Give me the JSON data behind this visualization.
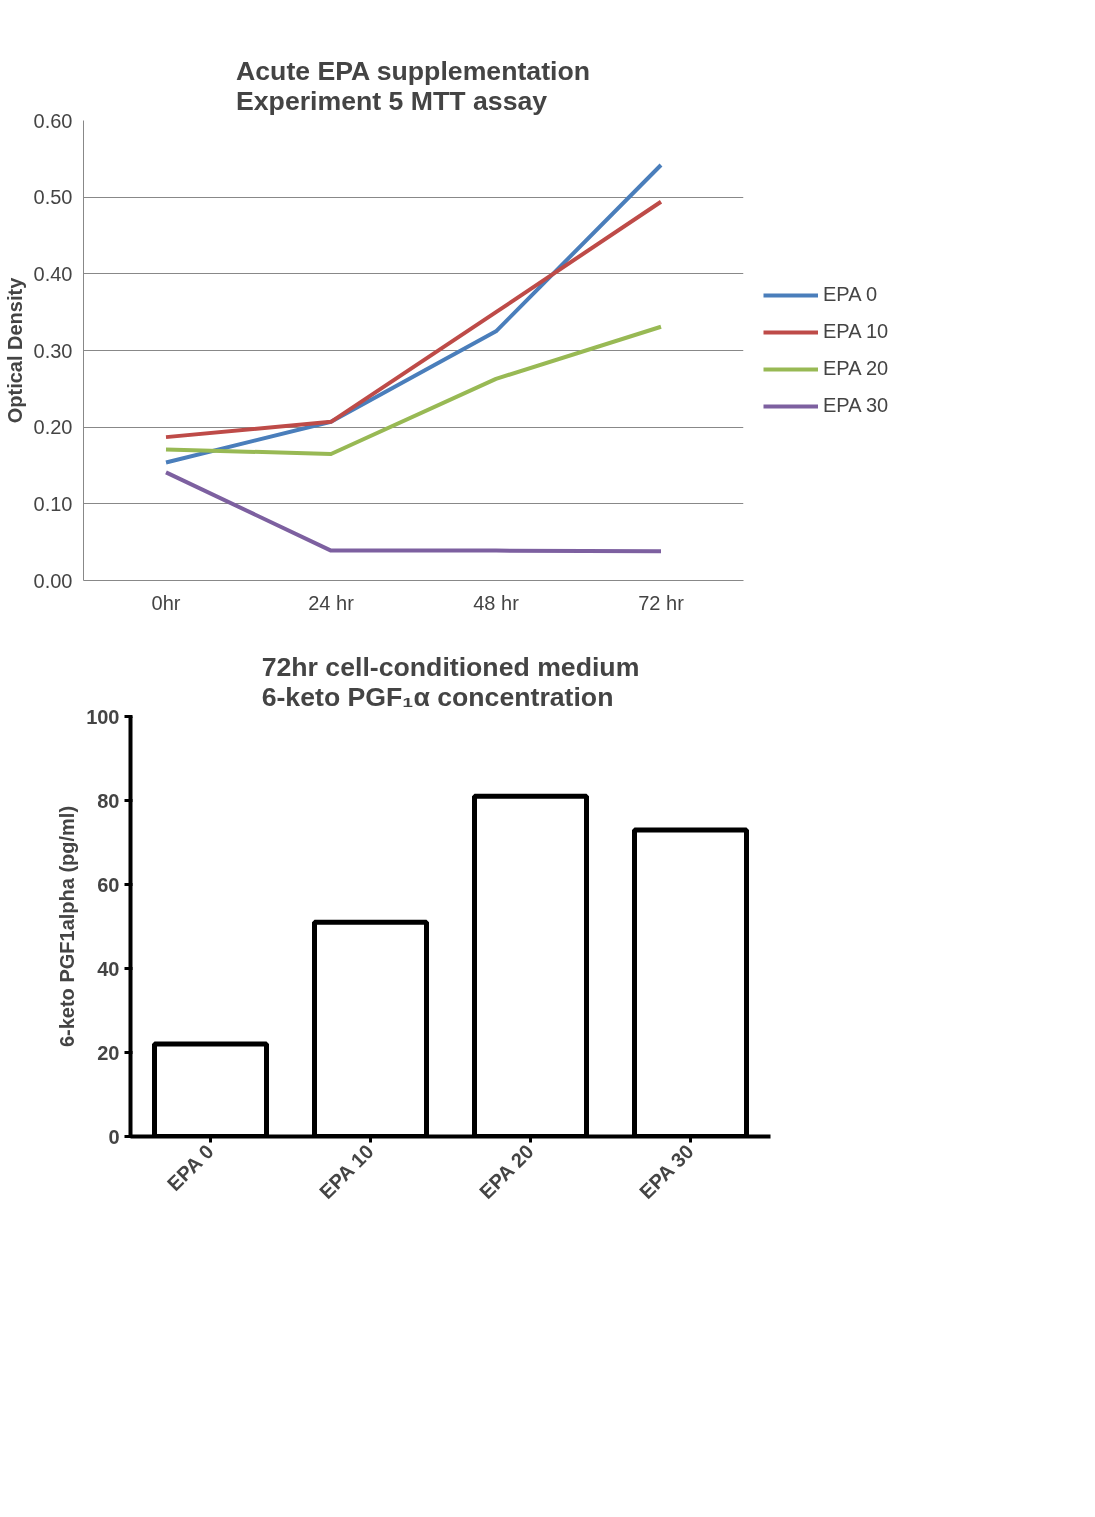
{
  "chart_data": [
    {
      "type": "line",
      "title": "Acute EPA supplementation\nExperiment 5 MTT assay",
      "ylabel": "Optical Density",
      "categories": [
        "0hr",
        "24 hr",
        "48 hr",
        "72 hr"
      ],
      "series": [
        {
          "name": "EPA 0",
          "color": "#4a7ebb",
          "values": [
            0.154,
            0.207,
            0.325,
            0.542
          ]
        },
        {
          "name": "EPA 10",
          "color": "#be4b48",
          "values": [
            0.187,
            0.207,
            0.35,
            0.494
          ]
        },
        {
          "name": "EPA 20",
          "color": "#98b954",
          "values": [
            0.171,
            0.165,
            0.263,
            0.331
          ]
        },
        {
          "name": "EPA 30",
          "color": "#7d60a0",
          "values": [
            0.141,
            0.039,
            0.039,
            0.038
          ]
        }
      ],
      "ylim": [
        0,
        0.6
      ],
      "yticks": [
        {
          "value": 0,
          "label": "0.00"
        },
        {
          "value": 0.1,
          "label": "0.10"
        },
        {
          "value": 0.2,
          "label": "0.20"
        },
        {
          "value": 0.3,
          "label": "0.30"
        },
        {
          "value": 0.4,
          "label": "0.40"
        },
        {
          "value": 0.5,
          "label": "0.50"
        },
        {
          "value": 0.6,
          "label": "0.60"
        }
      ],
      "grid": "y",
      "legend": "right",
      "marker": "none",
      "line_style": "solid"
    },
    {
      "type": "bar",
      "title": "72hr cell-conditioned medium\n6-keto PGF₁α concentration",
      "ylabel": "6-keto PGF1alpha (pg/ml)",
      "categories": [
        "EPA 0",
        "EPA 10",
        "EPA 20",
        "EPA 30"
      ],
      "values": [
        22,
        51,
        81,
        73
      ],
      "color": "#000000",
      "ylim": [
        0,
        100
      ],
      "yticks": [
        0,
        20,
        40,
        60,
        80,
        100
      ],
      "grid": false,
      "legend": false
    }
  ]
}
